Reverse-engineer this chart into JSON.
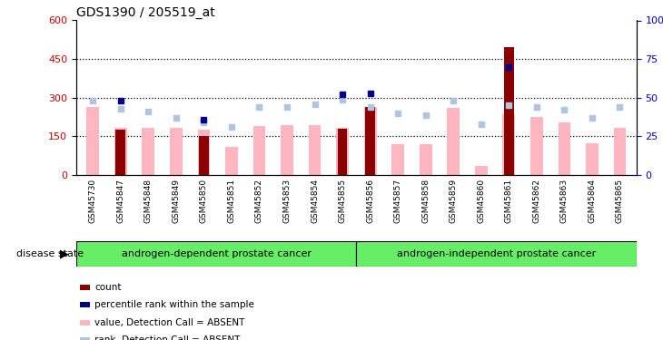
{
  "title": "GDS1390 / 205519_at",
  "samples": [
    "GSM45730",
    "GSM45847",
    "GSM45848",
    "GSM45849",
    "GSM45850",
    "GSM45851",
    "GSM45852",
    "GSM45853",
    "GSM45854",
    "GSM45855",
    "GSM45856",
    "GSM45857",
    "GSM45858",
    "GSM45859",
    "GSM45860",
    "GSM45861",
    "GSM45862",
    "GSM45863",
    "GSM45864",
    "GSM45865"
  ],
  "values_absent": [
    265,
    185,
    185,
    185,
    175,
    110,
    190,
    195,
    195,
    185,
    265,
    120,
    120,
    260,
    35,
    235,
    225,
    205,
    125,
    185
  ],
  "counts": [
    0,
    175,
    0,
    0,
    150,
    0,
    0,
    0,
    0,
    180,
    265,
    0,
    0,
    0,
    0,
    495,
    0,
    0,
    0,
    0
  ],
  "ranks_absent_pct": [
    48,
    43,
    41,
    37,
    34,
    31,
    44,
    44,
    46,
    49,
    44,
    40,
    39,
    48,
    33,
    45,
    44,
    42,
    37,
    44
  ],
  "percentile_ranks_pct": [
    0,
    48,
    0,
    0,
    36,
    0,
    0,
    0,
    0,
    52,
    53,
    0,
    0,
    0,
    0,
    70,
    0,
    0,
    0,
    0
  ],
  "ylim_left": [
    0,
    600
  ],
  "ylim_right": [
    0,
    100
  ],
  "yticks_left": [
    0,
    150,
    300,
    450,
    600
  ],
  "yticks_right": [
    0,
    25,
    50,
    75,
    100
  ],
  "group1_label": "androgen-dependent prostate cancer",
  "group2_label": "androgen-independent prostate cancer",
  "group1_count": 10,
  "group2_count": 10,
  "disease_state_label": "disease state",
  "legend_labels": [
    "count",
    "percentile rank within the sample",
    "value, Detection Call = ABSENT",
    "rank, Detection Call = ABSENT"
  ],
  "bar_color_count": "#8B0000",
  "bar_color_value": "#FFB6C1",
  "dot_color_rank_absent": "#B0C4DE",
  "dot_color_percentile": "#00008B",
  "bg_color_xticklabels": "#C8C8C8",
  "bg_color_group": "#66EE66",
  "right_axis_color": "#0000CC",
  "left_axis_color": "#CC0000"
}
